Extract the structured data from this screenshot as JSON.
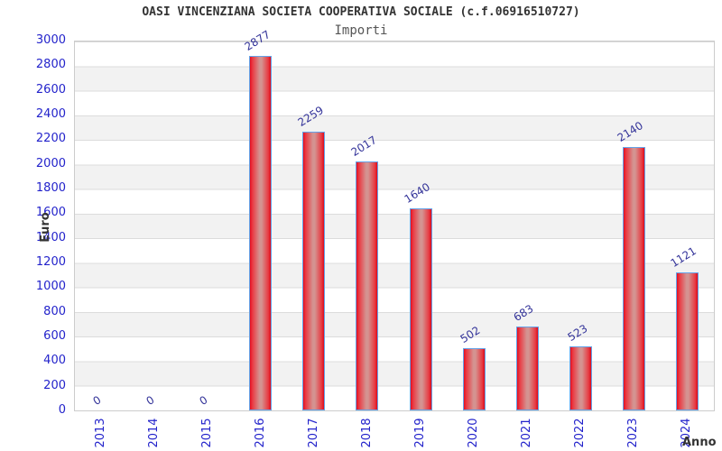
{
  "chart_data": {
    "type": "bar",
    "title": "OASI VINCENZIANA SOCIETA COOPERATIVA SOCIALE (c.f.06916510727)",
    "subtitle": "Importi",
    "xlabel": "Anno",
    "ylabel": "Euro",
    "categories": [
      "2013",
      "2014",
      "2015",
      "2016",
      "2017",
      "2018",
      "2019",
      "2020",
      "2021",
      "2022",
      "2023",
      "2024"
    ],
    "values": [
      0,
      0,
      0,
      2877,
      2259,
      2017,
      1640,
      502,
      683,
      523,
      2140,
      1121
    ],
    "value_labels": [
      "0",
      "0",
      "0",
      "2877",
      "2259",
      "2017",
      "1640",
      "502",
      "683",
      "523",
      "2140",
      "1121"
    ],
    "ylim": [
      0,
      3000
    ],
    "ytick_step": 200,
    "grid": "horizontal-bands-alternating",
    "legend_position": "none",
    "colors": {
      "bar_fill_edge": "#e40e20",
      "bar_fill_center": "#d49391",
      "bar_border": "#64a2e8",
      "axis_tick_label": "#2323cb",
      "value_label": "#333399",
      "band_alt": "#f2f2f2",
      "gridline": "#dcdcdc",
      "plot_border": "#cccccc",
      "title": "#333333",
      "subtitle": "#555555",
      "axis_title": "#333333",
      "background": "#ffffff"
    }
  }
}
